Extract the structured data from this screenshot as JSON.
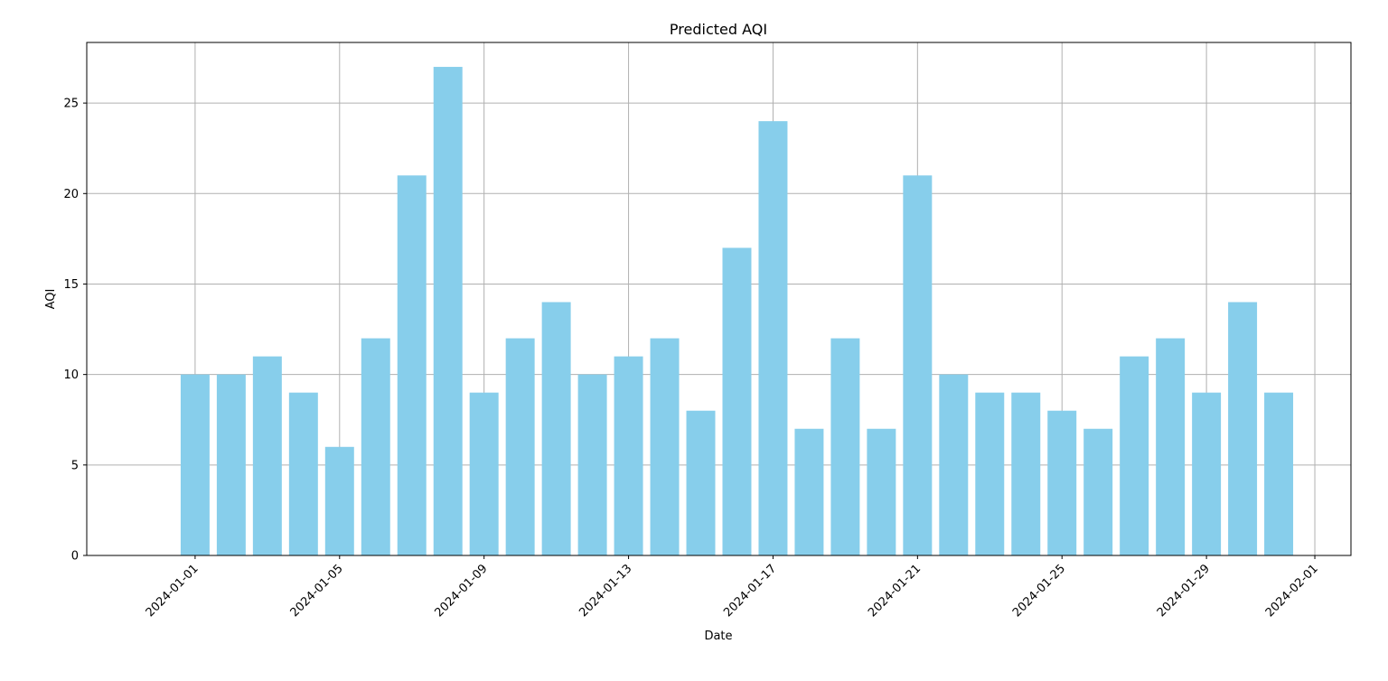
{
  "chart_data": {
    "type": "bar",
    "title": "Predicted AQI",
    "xlabel": "Date",
    "ylabel": "AQI",
    "bar_color": "#87ceeb",
    "grid": true,
    "x_tick_labels": [
      "2024-01-01",
      "2024-01-05",
      "2024-01-09",
      "2024-01-13",
      "2024-01-17",
      "2024-01-21",
      "2024-01-25",
      "2024-01-29",
      "2024-02-01"
    ],
    "y_ticks": [
      0,
      5,
      10,
      15,
      20,
      25
    ],
    "ylim": [
      0,
      28.35
    ],
    "xlim": [
      "2023-12-29",
      "2024-02-02"
    ],
    "categories": [
      "2024-01-01",
      "2024-01-02",
      "2024-01-03",
      "2024-01-04",
      "2024-01-05",
      "2024-01-06",
      "2024-01-07",
      "2024-01-08",
      "2024-01-09",
      "2024-01-10",
      "2024-01-11",
      "2024-01-12",
      "2024-01-13",
      "2024-01-14",
      "2024-01-15",
      "2024-01-16",
      "2024-01-17",
      "2024-01-18",
      "2024-01-19",
      "2024-01-20",
      "2024-01-21",
      "2024-01-22",
      "2024-01-23",
      "2024-01-24",
      "2024-01-25",
      "2024-01-26",
      "2024-01-27",
      "2024-01-28",
      "2024-01-29",
      "2024-01-30",
      "2024-01-31"
    ],
    "values": [
      10,
      10,
      11,
      9,
      6,
      12,
      21,
      27,
      9,
      12,
      14,
      10,
      11,
      12,
      8,
      17,
      24,
      7,
      12,
      7,
      21,
      10,
      9,
      9,
      8,
      7,
      11,
      12,
      9,
      14,
      9
    ]
  }
}
